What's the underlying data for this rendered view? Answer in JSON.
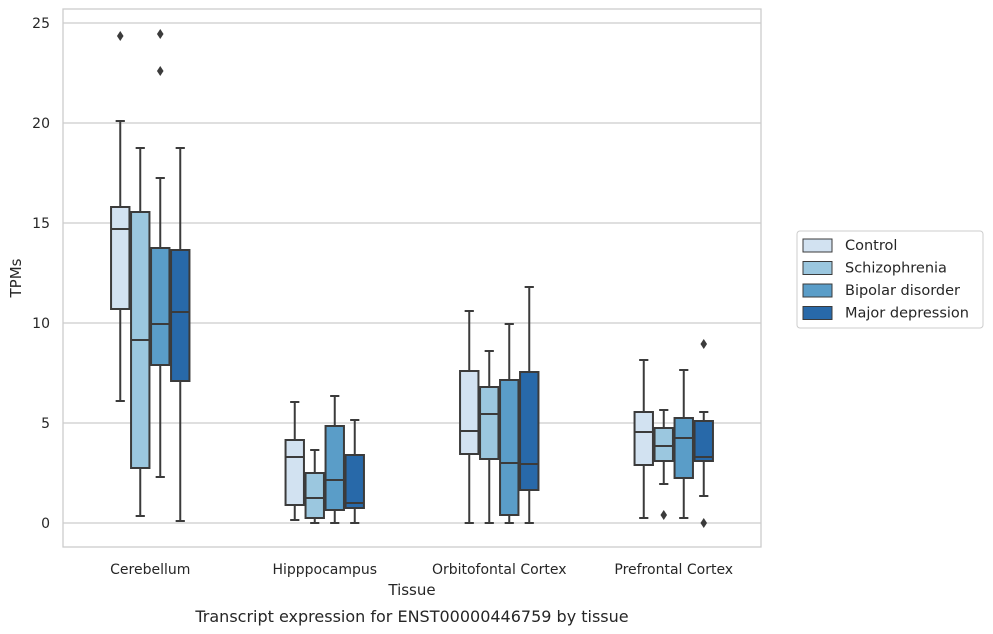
{
  "chart_data": {
    "type": "box",
    "xlabel": "Tissue",
    "ylabel": "TPMs",
    "caption": "Transcript expression for ENST00000446759 by tissue",
    "ylim": [
      -1.2,
      25.7
    ],
    "yticks": [
      0,
      5,
      10,
      15,
      20,
      25
    ],
    "grid": "horizontal",
    "legend_position": "right",
    "categories": [
      "Cerebellum",
      "Hipppocampus",
      "Orbitofontal Cortex",
      "Prefrontal Cortex"
    ],
    "series": [
      {
        "name": "Control",
        "color": "#d2e2f1",
        "boxes": [
          {
            "whislo": 6.1,
            "q1": 10.7,
            "med": 14.7,
            "q3": 15.8,
            "whishi": 20.1,
            "fliers": [
              24.35
            ]
          },
          {
            "whislo": 0.15,
            "q1": 0.9,
            "med": 3.3,
            "q3": 4.15,
            "whishi": 6.05,
            "fliers": []
          },
          {
            "whislo": 0.0,
            "q1": 3.45,
            "med": 4.6,
            "q3": 7.6,
            "whishi": 10.6,
            "fliers": []
          },
          {
            "whislo": 0.25,
            "q1": 2.9,
            "med": 4.55,
            "q3": 5.55,
            "whishi": 8.15,
            "fliers": []
          }
        ]
      },
      {
        "name": "Schizophrenia",
        "color": "#9bc7df",
        "boxes": [
          {
            "whislo": 0.35,
            "q1": 2.75,
            "med": 9.15,
            "q3": 15.55,
            "whishi": 18.75,
            "fliers": []
          },
          {
            "whislo": 0.0,
            "q1": 0.25,
            "med": 1.25,
            "q3": 2.5,
            "whishi": 3.65,
            "fliers": []
          },
          {
            "whislo": 0.0,
            "q1": 3.2,
            "med": 5.45,
            "q3": 6.8,
            "whishi": 8.6,
            "fliers": []
          },
          {
            "whislo": 1.95,
            "q1": 3.1,
            "med": 3.85,
            "q3": 4.75,
            "whishi": 5.65,
            "fliers": [
              0.4
            ]
          }
        ]
      },
      {
        "name": "Bipolar disorder",
        "color": "#5a9dc8",
        "boxes": [
          {
            "whislo": 2.3,
            "q1": 7.9,
            "med": 9.95,
            "q3": 13.75,
            "whishi": 17.25,
            "fliers": [
              22.6,
              24.45
            ]
          },
          {
            "whislo": 0.0,
            "q1": 0.65,
            "med": 2.15,
            "q3": 4.85,
            "whishi": 6.35,
            "fliers": []
          },
          {
            "whislo": 0.0,
            "q1": 0.4,
            "med": 3.0,
            "q3": 7.15,
            "whishi": 9.95,
            "fliers": []
          },
          {
            "whislo": 0.25,
            "q1": 2.25,
            "med": 4.25,
            "q3": 5.25,
            "whishi": 7.65,
            "fliers": []
          }
        ]
      },
      {
        "name": "Major depression",
        "color": "#2869a9",
        "boxes": [
          {
            "whislo": 0.1,
            "q1": 7.1,
            "med": 10.55,
            "q3": 13.65,
            "whishi": 18.75,
            "fliers": []
          },
          {
            "whislo": 0.0,
            "q1": 0.75,
            "med": 1.0,
            "q3": 3.4,
            "whishi": 5.15,
            "fliers": []
          },
          {
            "whislo": 0.0,
            "q1": 1.65,
            "med": 2.95,
            "q3": 7.55,
            "whishi": 11.8,
            "fliers": []
          },
          {
            "whislo": 1.35,
            "q1": 3.1,
            "med": 3.3,
            "q3": 5.1,
            "whishi": 5.55,
            "fliers": [
              0.0,
              8.95
            ]
          }
        ]
      }
    ]
  }
}
